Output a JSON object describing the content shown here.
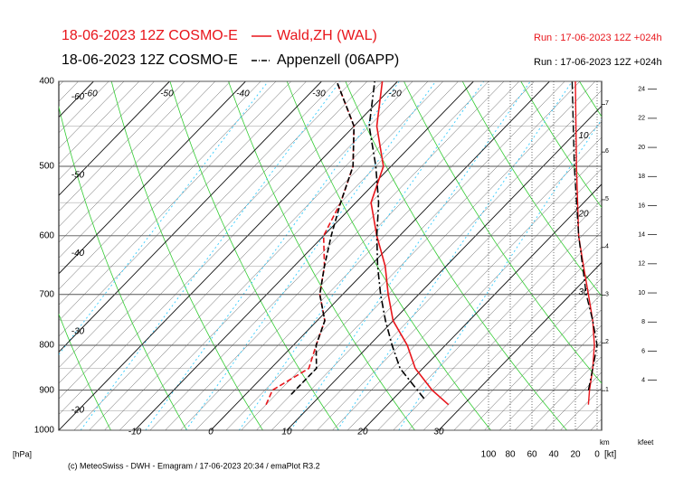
{
  "chart_data": {
    "type": "emagram",
    "series": [
      {
        "title": "18-06-2023 12Z COSMO-E",
        "name": "Wald,ZH (WAL)",
        "run": "Run : 17-06-2023 12Z +024h",
        "color": "#e8151b",
        "line_style": "solid",
        "temperature": {
          "pressure": [
            935,
            900,
            850,
            800,
            750,
            700,
            650,
            600,
            550,
            500,
            450,
            400
          ],
          "values": [
            28,
            24,
            19,
            15,
            10,
            6,
            2,
            -3,
            -8,
            -11,
            -17,
            -22
          ]
        },
        "dewpoint": {
          "pressure": [
            935,
            900,
            850,
            800,
            750,
            700,
            650,
            600,
            550,
            500,
            450,
            400
          ],
          "values": [
            4,
            3,
            5,
            3,
            1,
            -3,
            -6,
            -10,
            -12,
            -15,
            -20,
            -28
          ]
        },
        "wind_speed": {
          "pressure": [
            935,
            900,
            850,
            800,
            750,
            700,
            650,
            600,
            500,
            400
          ],
          "values": [
            8,
            7,
            4,
            2.5,
            4,
            8,
            12.5,
            17,
            19,
            20
          ]
        }
      },
      {
        "title": "18-06-2023 12Z COSMO-E",
        "name": "Appenzell (06APP)",
        "run": "Run : 17-06-2023 12Z +024h",
        "color": "#000000",
        "line_style": "dashdot",
        "temperature": {
          "pressure": [
            920,
            850,
            800,
            750,
            700,
            650,
            600,
            550,
            500,
            450,
            400
          ],
          "values": [
            24,
            17,
            13,
            9,
            5,
            1,
            -3,
            -7,
            -12,
            -18,
            -23
          ]
        },
        "dewpoint": {
          "pressure": [
            910,
            850,
            800,
            750,
            700,
            650,
            600,
            550,
            500,
            450,
            400
          ],
          "values": [
            6,
            6,
            3,
            1,
            -3,
            -6,
            -9,
            -12,
            -15,
            -20,
            -28
          ]
        },
        "wind_speed": {
          "pressure": [
            900,
            850,
            800,
            750,
            700,
            600,
            500,
            400
          ],
          "values": [
            8,
            4,
            0,
            4,
            10,
            17,
            21,
            23
          ]
        }
      }
    ],
    "ylabel": "[hPa]",
    "ylim": [
      1000,
      400
    ],
    "ylog": true,
    "yticks": [
      400,
      500,
      600,
      700,
      800,
      900,
      1000
    ],
    "xlim": [
      -20,
      51.43
    ],
    "xticks": [
      -60,
      -50,
      -40,
      -30,
      -20,
      -10,
      0,
      10,
      20,
      30
    ],
    "isotherm_labels": {
      "top": [
        -60,
        -50,
        -40,
        -30,
        -20
      ],
      "left": [
        -60,
        -50,
        -40,
        -30,
        -20
      ],
      "right": [
        10,
        20,
        30
      ],
      "bottom": [
        -10,
        0,
        10,
        20,
        30
      ]
    },
    "wind_lim": [
      100,
      0
    ],
    "wind_ticks": [
      100,
      80,
      60,
      40,
      20,
      0
    ],
    "wind_unit": "[kt]",
    "km_label": "km",
    "km_lim": [
      0.17,
      7.48
    ],
    "km_ticks": [
      1,
      2,
      3,
      4,
      5,
      6,
      7
    ],
    "kfeet_label": "kfeet",
    "kfeet_lim": [
      0.56,
      24.54
    ],
    "kfeet_ticks": [
      4,
      6,
      8,
      10,
      12,
      14,
      16,
      18,
      20,
      22,
      24
    ],
    "footer": "(c) MeteoSwiss - DWH - Emagram / 17-06-2023  20:34 / emaPlot R3.2"
  }
}
